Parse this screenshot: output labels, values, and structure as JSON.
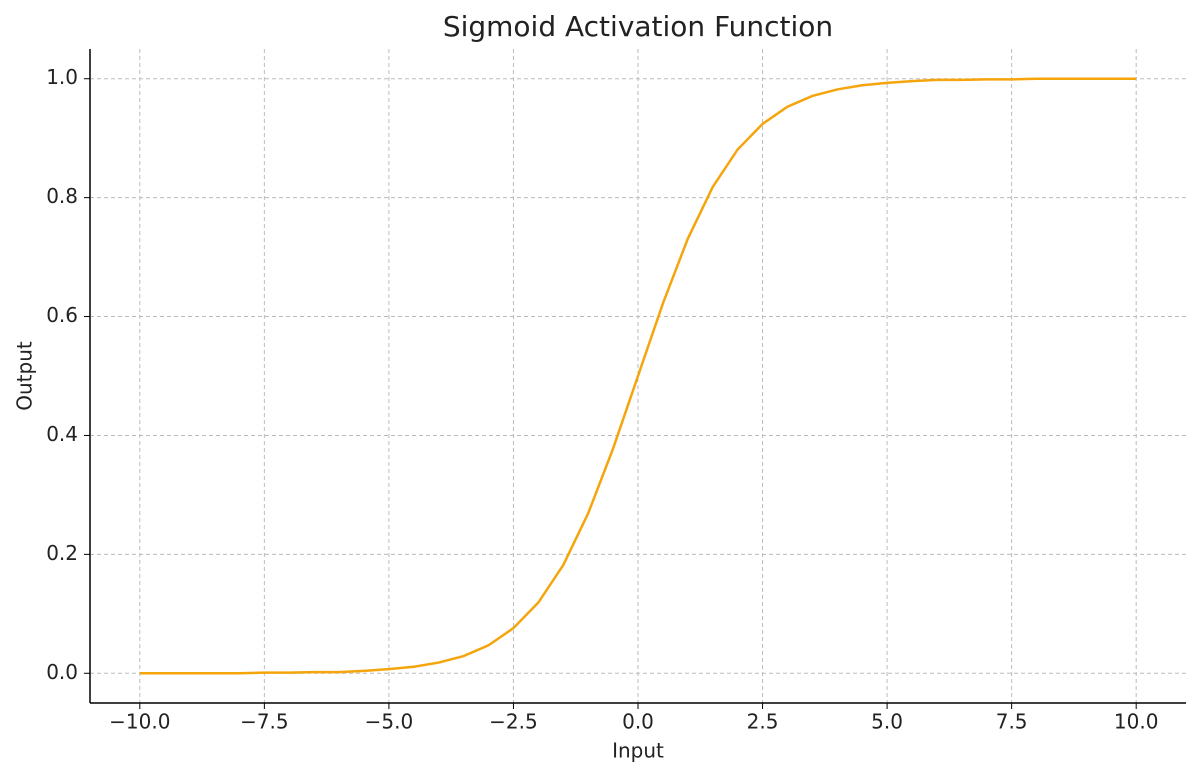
{
  "chart_data": {
    "type": "line",
    "title": "Sigmoid Activation Function",
    "x_label": "Input",
    "y_label": "Output",
    "x": [
      -10,
      -9.5,
      -9,
      -8.5,
      -8,
      -7.5,
      -7,
      -6.5,
      -6,
      -5.5,
      -5,
      -4.5,
      -4,
      -3.5,
      -3,
      -2.5,
      -2,
      -1.5,
      -1,
      -0.5,
      0,
      0.5,
      1,
      1.5,
      2,
      2.5,
      3,
      3.5,
      4,
      4.5,
      5,
      5.5,
      6,
      6.5,
      7,
      7.5,
      8,
      8.5,
      9,
      9.5,
      10
    ],
    "series": [
      {
        "color": "#f5a50c",
        "values": [
          0,
          0,
          0,
          0,
          0,
          0.001,
          0.001,
          0.002,
          0.002,
          0.004,
          0.007,
          0.011,
          0.018,
          0.029,
          0.047,
          0.076,
          0.119,
          0.182,
          0.269,
          0.378,
          0.5,
          0.622,
          0.731,
          0.818,
          0.881,
          0.924,
          0.953,
          0.971,
          0.982,
          0.989,
          0.993,
          0.996,
          0.998,
          0.998,
          0.999,
          0.999,
          1,
          1,
          1,
          1,
          1
        ]
      }
    ],
    "xlim": [
      -11,
      11
    ],
    "ylim": [
      -0.05,
      1.05
    ],
    "xticks": [
      {
        "value": -10,
        "label": "−10.0"
      },
      {
        "value": -7.5,
        "label": "−7.5"
      },
      {
        "value": -5,
        "label": "−5.0"
      },
      {
        "value": -2.5,
        "label": "−2.5"
      },
      {
        "value": 0,
        "label": "0.0"
      },
      2.5,
      {
        "value": 5,
        "label": "5.0"
      },
      7.5,
      {
        "value": 10,
        "label": "10.0"
      }
    ],
    "yticks": [
      {
        "value": 0,
        "label": "0.0"
      },
      0.2,
      0.4,
      0.6,
      0.8,
      {
        "value": 1,
        "label": "1.0"
      }
    ],
    "grid": true
  }
}
